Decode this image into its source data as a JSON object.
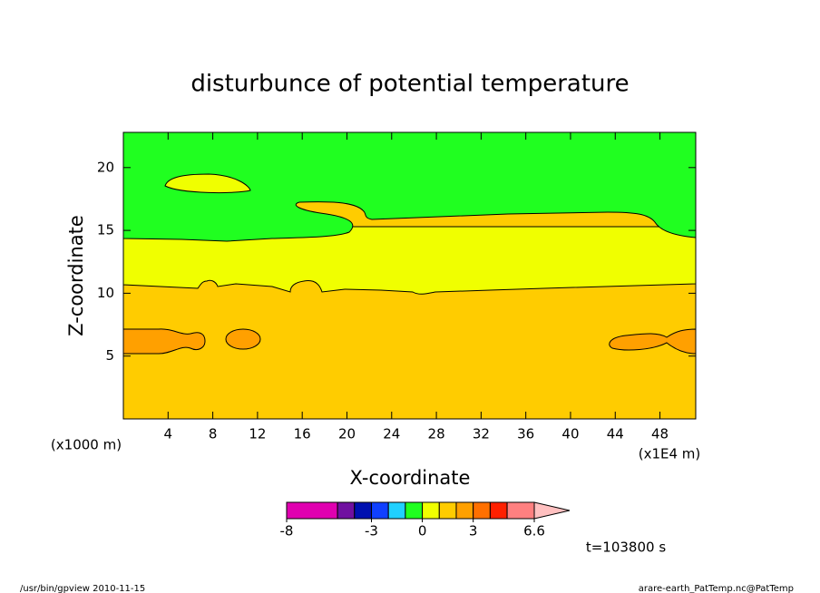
{
  "chart_data": {
    "type": "contour",
    "title": "disturbunce of potential temperature",
    "x_label": "X-coordinate",
    "y_label": "Z-coordinate",
    "x_unit": "(x1000 m)",
    "x_scale_note": "(x1E4 m)",
    "xlim": [
      0,
      51.2
    ],
    "xticks": [
      4,
      8,
      12,
      16,
      20,
      24,
      28,
      32,
      36,
      40,
      44,
      48
    ],
    "ylim": [
      0,
      22.8
    ],
    "yticks": [
      5,
      10,
      15,
      20
    ],
    "colorbar": {
      "levels": [
        -8,
        -5,
        -4,
        -3,
        -2,
        -1,
        0,
        1,
        2,
        3,
        4,
        5,
        6.6
      ],
      "colors": [
        "#e000b0",
        "#7010a0",
        "#0010b0",
        "#1040ff",
        "#20d0ff",
        "#20ff20",
        "#f0ff00",
        "#ffcc00",
        "#ffa000",
        "#ff7000",
        "#ff2000",
        "#ff8080"
      ],
      "extend_color": "#ffc0c0",
      "ticks": [
        -8,
        -3,
        0,
        3,
        6.6
      ]
    },
    "time_label": "t=103800 s",
    "footer_left": "/usr/bin/gpview  2010-11-15",
    "footer_right": "arare-earth_PatTemp.nc@PatTemp"
  }
}
